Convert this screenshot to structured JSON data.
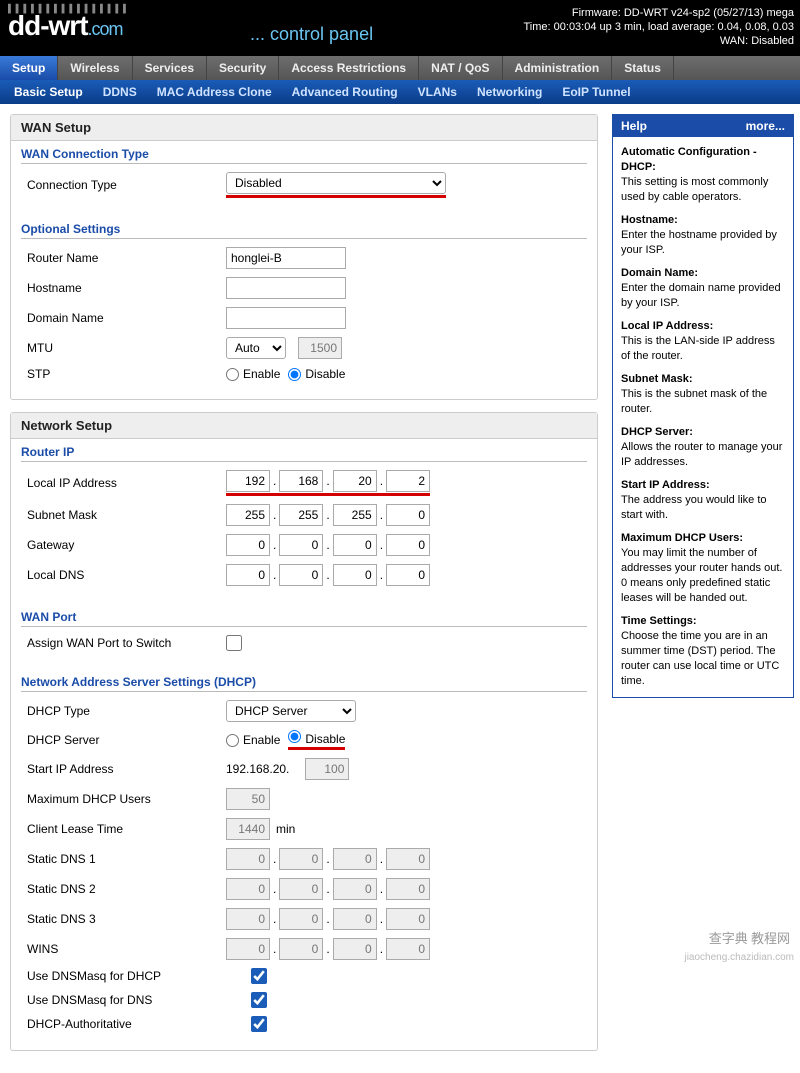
{
  "header": {
    "logo": "dd-wrt",
    "logo_suffix": ".com",
    "subtitle": "... control panel",
    "firmware": "Firmware: DD-WRT v24-sp2 (05/27/13) mega",
    "time": "Time: 00:03:04 up 3 min, load average: 0.04, 0.08, 0.03",
    "wan": "WAN: Disabled"
  },
  "tabs1": [
    "Setup",
    "Wireless",
    "Services",
    "Security",
    "Access Restrictions",
    "NAT / QoS",
    "Administration",
    "Status"
  ],
  "tabs1_active": 0,
  "tabs2": [
    "Basic Setup",
    "DDNS",
    "MAC Address Clone",
    "Advanced Routing",
    "VLANs",
    "Networking",
    "EoIP Tunnel"
  ],
  "tabs2_active": 0,
  "wan_setup": {
    "title": "WAN Setup",
    "sec1_title": "WAN Connection Type",
    "conn_type_label": "Connection Type",
    "conn_type_value": "Disabled",
    "sec2_title": "Optional Settings",
    "router_name_label": "Router Name",
    "router_name_value": "honglei-B",
    "hostname_label": "Hostname",
    "hostname_value": "",
    "domain_label": "Domain Name",
    "domain_value": "",
    "mtu_label": "MTU",
    "mtu_mode": "Auto",
    "mtu_value": "1500",
    "stp_label": "STP",
    "enable_label": "Enable",
    "disable_label": "Disable",
    "stp_value": "disable"
  },
  "network_setup": {
    "title": "Network Setup",
    "sec1_title": "Router IP",
    "local_ip_label": "Local IP Address",
    "local_ip": [
      "192",
      "168",
      "20",
      "2"
    ],
    "subnet_label": "Subnet Mask",
    "subnet": [
      "255",
      "255",
      "255",
      "0"
    ],
    "gateway_label": "Gateway",
    "gateway": [
      "0",
      "0",
      "0",
      "0"
    ],
    "dns_label": "Local DNS",
    "dns": [
      "0",
      "0",
      "0",
      "0"
    ],
    "sec2_title": "WAN Port",
    "assign_wan_label": "Assign WAN Port to Switch",
    "assign_wan_value": false,
    "sec3_title": "Network Address Server Settings (DHCP)",
    "dhcp_type_label": "DHCP Type",
    "dhcp_type_value": "DHCP Server",
    "dhcp_server_label": "DHCP Server",
    "dhcp_server_value": "disable",
    "start_ip_label": "Start IP Address",
    "start_ip_prefix": "192.168.20.",
    "start_ip_last": "100",
    "max_users_label": "Maximum DHCP Users",
    "max_users_value": "50",
    "lease_label": "Client Lease Time",
    "lease_value": "1440",
    "lease_unit": "min",
    "dns1_label": "Static DNS 1",
    "dns1": [
      "0",
      "0",
      "0",
      "0"
    ],
    "dns2_label": "Static DNS 2",
    "dns2": [
      "0",
      "0",
      "0",
      "0"
    ],
    "dns3_label": "Static DNS 3",
    "dns3": [
      "0",
      "0",
      "0",
      "0"
    ],
    "wins_label": "WINS",
    "wins": [
      "0",
      "0",
      "0",
      "0"
    ],
    "dnsmasq_dhcp_label": "Use DNSMasq for DHCP",
    "dnsmasq_dhcp_value": true,
    "dnsmasq_dns_label": "Use DNSMasq for DNS",
    "dnsmasq_dns_value": true,
    "dhcp_auth_label": "DHCP-Authoritative",
    "dhcp_auth_value": true
  },
  "help": {
    "title": "Help",
    "more": "more...",
    "items": [
      {
        "h": "Automatic Configuration - DHCP:",
        "t": "This setting is most commonly used by cable operators."
      },
      {
        "h": "Hostname:",
        "t": "Enter the hostname provided by your ISP."
      },
      {
        "h": "Domain Name:",
        "t": "Enter the domain name provided by your ISP."
      },
      {
        "h": "Local IP Address:",
        "t": "This is the LAN-side IP address of the router."
      },
      {
        "h": "Subnet Mask:",
        "t": "This is the subnet mask of the router."
      },
      {
        "h": "DHCP Server:",
        "t": "Allows the router to manage your IP addresses."
      },
      {
        "h": "Start IP Address:",
        "t": "The address you would like to start with."
      },
      {
        "h": "Maximum DHCP Users:",
        "t": "You may limit the number of addresses your router hands out. 0 means only predefined static leases will be handed out."
      },
      {
        "h": "Time Settings:",
        "t": "Choose the time you are in an summer time (DST) period. The router can use local time or UTC time."
      }
    ]
  },
  "watermark1": "查字典 教程网",
  "watermark2": "jiaocheng.chazidian.com",
  "colors": {
    "accent": "#1a4ca8",
    "underline": "#d40000"
  }
}
